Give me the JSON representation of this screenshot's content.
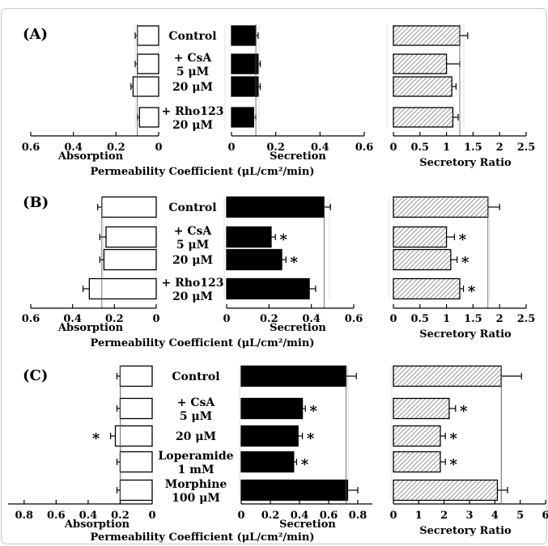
{
  "colors": {
    "absorption_bar": "#ffffff",
    "secretion_bar": "#000000",
    "ratio_bar_hatch": "#bdbdbd",
    "frame": "#c8c8c8"
  },
  "chart_data": [
    {
      "panel_label": "(A)",
      "type": "bar",
      "orientation": "horizontal",
      "treatments": [
        {
          "label": "Control"
        },
        {
          "label": "+ CsA",
          "label2": "5 μM"
        },
        {
          "label": "20 μM"
        },
        {
          "label": "+ Rho123",
          "label2": "20 μM"
        }
      ],
      "axis_title": "Permeability Coefficient (μL/cm²/min)",
      "absorption": {
        "xlabel": "Absorption",
        "xlim": [
          0.6,
          0
        ],
        "ticks": [
          "0.6",
          "0.4",
          "0.2",
          "0"
        ],
        "tick_values": [
          0.6,
          0.4,
          0.2,
          0
        ],
        "values": [
          0.1,
          0.1,
          0.12,
          0.09
        ],
        "errors": [
          0.01,
          0.01,
          0.01,
          0.01
        ],
        "significant": [
          false,
          false,
          false,
          false
        ]
      },
      "secretion": {
        "xlabel": "Secretion",
        "xlim": [
          0,
          0.6
        ],
        "ticks": [
          "0",
          "0.2",
          "0.4",
          "0.6"
        ],
        "tick_values": [
          0,
          0.2,
          0.4,
          0.6
        ],
        "values": [
          0.11,
          0.12,
          0.12,
          0.1
        ],
        "errors": [
          0.01,
          0.01,
          0.01,
          0.01
        ],
        "significant": [
          false,
          false,
          false,
          false
        ]
      },
      "ratio": {
        "xlabel": "Secretory Ratio",
        "xlim": [
          0,
          2.5
        ],
        "ticks": [
          "0",
          "0.5",
          "1",
          "1.5",
          "2",
          "2.5"
        ],
        "tick_values": [
          0,
          0.5,
          1,
          1.5,
          2,
          2.5
        ],
        "values": [
          1.25,
          1.0,
          1.1,
          1.12
        ],
        "errors": [
          0.15,
          0.25,
          0.08,
          0.1
        ],
        "significant": [
          false,
          false,
          false,
          false
        ]
      }
    },
    {
      "panel_label": "(B)",
      "type": "bar",
      "orientation": "horizontal",
      "treatments": [
        {
          "label": "Control"
        },
        {
          "label": "+ CsA",
          "label2": "5 μM"
        },
        {
          "label": "20 μM"
        },
        {
          "label": "+ Rho123",
          "label2": "20 μM"
        }
      ],
      "axis_title": "Permeability Coefficient (μL/cm²/min)",
      "absorption": {
        "xlabel": "Absorption",
        "xlim": [
          0.6,
          0
        ],
        "ticks": [
          "0.6",
          "0.4",
          "0.2",
          "0"
        ],
        "tick_values": [
          0.6,
          0.4,
          0.2,
          0
        ],
        "values": [
          0.26,
          0.24,
          0.25,
          0.32
        ],
        "errors": [
          0.02,
          0.03,
          0.02,
          0.03
        ],
        "significant": [
          false,
          false,
          false,
          false
        ]
      },
      "secretion": {
        "xlabel": "Secretion",
        "xlim": [
          0,
          0.6
        ],
        "ticks": [
          "0",
          "0.2",
          "0.4",
          "0.6"
        ],
        "tick_values": [
          0,
          0.2,
          0.4,
          0.6
        ],
        "values": [
          0.46,
          0.21,
          0.26,
          0.39
        ],
        "errors": [
          0.03,
          0.02,
          0.02,
          0.03
        ],
        "significant": [
          false,
          true,
          true,
          false
        ]
      },
      "ratio": {
        "xlabel": "Secretory Ratio",
        "xlim": [
          0,
          2.5
        ],
        "ticks": [
          "0",
          "0.5",
          "1",
          "1.5",
          "2",
          "2.5"
        ],
        "tick_values": [
          0,
          0.5,
          1,
          1.5,
          2,
          2.5
        ],
        "values": [
          1.78,
          1.0,
          1.08,
          1.25
        ],
        "errors": [
          0.22,
          0.15,
          0.12,
          0.07
        ],
        "significant": [
          false,
          true,
          true,
          true
        ]
      }
    },
    {
      "panel_label": "(C)",
      "type": "bar",
      "orientation": "horizontal",
      "treatments": [
        {
          "label": "Control"
        },
        {
          "label": "+ CsA",
          "label2": "5 μM"
        },
        {
          "label": "20 μM"
        },
        {
          "label": "Loperamide",
          "label2": "1 mM"
        },
        {
          "label": "Morphine",
          "label2": "100 μM"
        }
      ],
      "axis_title": "Permeability Coefficient (μL/cm²/min)",
      "absorption": {
        "xlabel": "Absorption",
        "xlim": [
          0.9,
          0
        ],
        "ticks": [
          "0.8",
          "0.6",
          "0.4",
          "0.2",
          "0"
        ],
        "tick_values": [
          0.8,
          0.6,
          0.4,
          0.2,
          0
        ],
        "values": [
          0.2,
          0.2,
          0.23,
          0.2,
          0.2
        ],
        "errors": [
          0.02,
          0.02,
          0.03,
          0.02,
          0.02
        ],
        "significant": [
          false,
          false,
          true,
          false,
          false
        ]
      },
      "secretion": {
        "xlabel": "Secretion",
        "xlim": [
          0,
          0.9
        ],
        "ticks": [
          "0",
          "0.2",
          "0.4",
          "0.6",
          "0.8"
        ],
        "tick_values": [
          0,
          0.2,
          0.4,
          0.6,
          0.8
        ],
        "values": [
          0.72,
          0.42,
          0.39,
          0.36,
          0.73
        ],
        "errors": [
          0.07,
          0.02,
          0.03,
          0.02,
          0.07
        ],
        "significant": [
          false,
          true,
          true,
          true,
          false
        ]
      },
      "ratio": {
        "xlabel": "Secretory Ratio",
        "xlim": [
          0,
          6
        ],
        "ticks": [
          "0",
          "1",
          "2",
          "3",
          "4",
          "5",
          "6"
        ],
        "tick_values": [
          0,
          1,
          2,
          3,
          4,
          5,
          6
        ],
        "values": [
          4.25,
          2.2,
          1.85,
          1.85,
          4.1
        ],
        "errors": [
          0.8,
          0.25,
          0.2,
          0.2,
          0.4
        ],
        "significant": [
          false,
          true,
          true,
          true,
          false
        ]
      }
    }
  ]
}
